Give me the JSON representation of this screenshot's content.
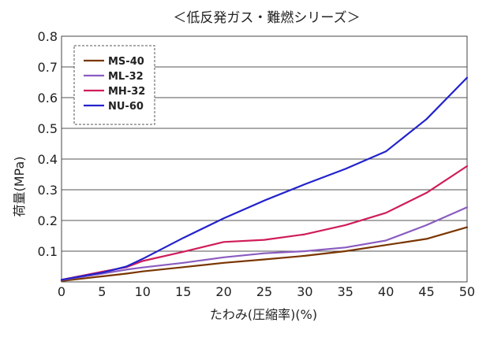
{
  "chart_data": {
    "type": "line",
    "title": "＜低反発ガス・難燃シリーズ＞",
    "xlabel": "たわみ(圧縮率)(%)",
    "ylabel": "荷量(MPa)",
    "xlim": [
      0,
      50
    ],
    "ylim": [
      0,
      0.8
    ],
    "x_ticks": [
      0,
      5,
      10,
      15,
      20,
      25,
      30,
      35,
      40,
      45,
      50
    ],
    "y_ticks": [
      0.1,
      0.2,
      0.3,
      0.4,
      0.5,
      0.6,
      0.7,
      0.8
    ],
    "grid": "horizontal",
    "legend_position": "top-left",
    "x": [
      0,
      5,
      8,
      10,
      15,
      20,
      25,
      30,
      35,
      40,
      45,
      50
    ],
    "series": [
      {
        "name": "MS-40",
        "color": "#7a3500",
        "values": [
          0.003,
          0.018,
          0.027,
          0.034,
          0.048,
          0.062,
          0.073,
          0.085,
          0.1,
          0.12,
          0.14,
          0.178
        ]
      },
      {
        "name": "ML-32",
        "color": "#8a5cc0",
        "values": [
          0.006,
          0.027,
          0.04,
          0.047,
          0.062,
          0.08,
          0.093,
          0.1,
          0.112,
          0.135,
          0.185,
          0.243
        ]
      },
      {
        "name": "MH-32",
        "color": "#d01c5a",
        "values": [
          0.007,
          0.033,
          0.048,
          0.068,
          0.098,
          0.13,
          0.137,
          0.155,
          0.185,
          0.225,
          0.29,
          0.377
        ]
      },
      {
        "name": "NU-60",
        "color": "#2222cc",
        "values": [
          0.007,
          0.03,
          0.05,
          0.075,
          0.143,
          0.207,
          0.265,
          0.318,
          0.368,
          0.425,
          0.53,
          0.665
        ]
      }
    ]
  }
}
